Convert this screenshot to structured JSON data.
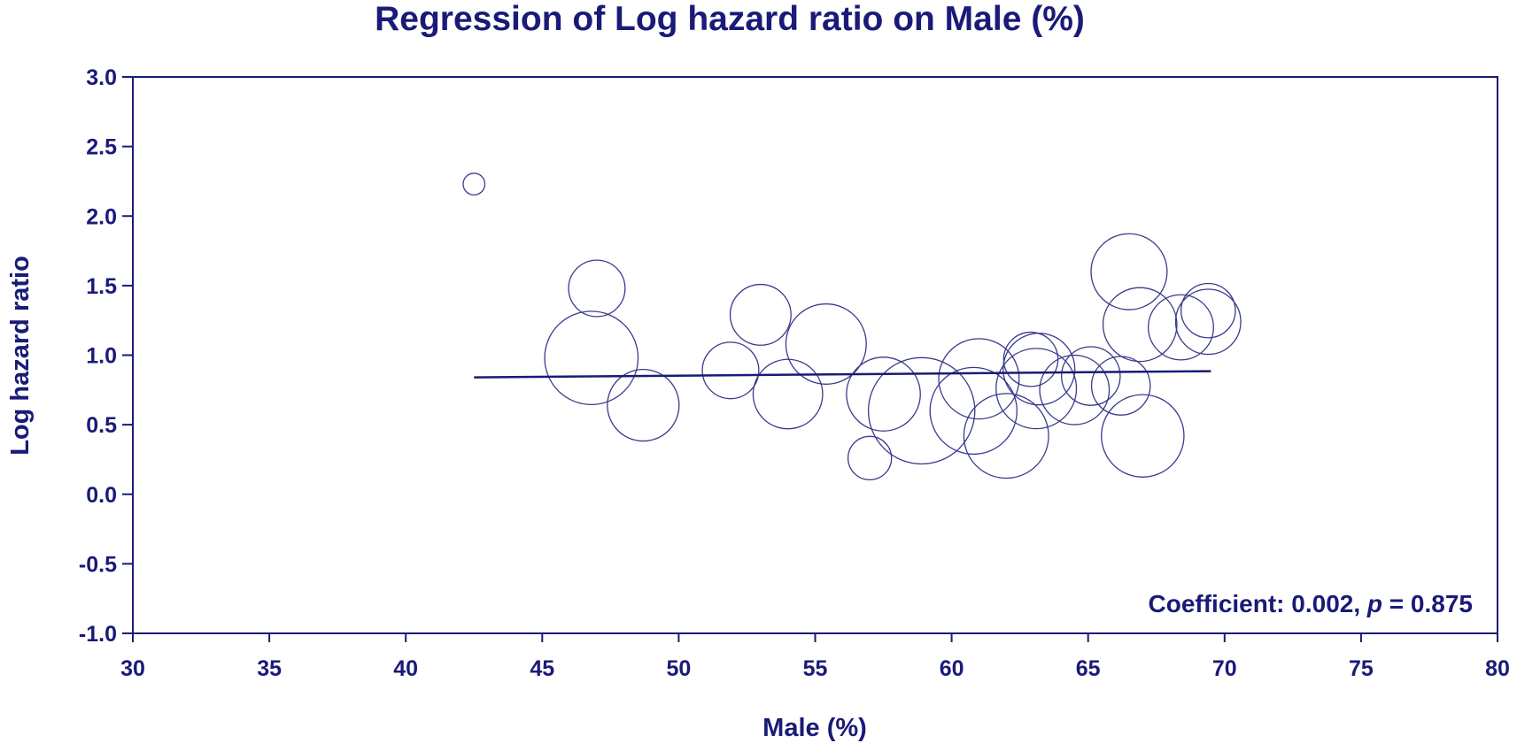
{
  "chart_data": {
    "type": "scatter",
    "title": "Regression of Log hazard ratio on Male (%)",
    "xlabel": "Male (%)",
    "ylabel": "Log hazard ratio",
    "xlim": [
      30,
      80
    ],
    "ylim": [
      -1.0,
      3.0
    ],
    "x_ticks": [
      "30",
      "35",
      "40",
      "45",
      "50",
      "55",
      "60",
      "65",
      "70",
      "75",
      "80"
    ],
    "y_ticks": [
      "3.0",
      "2.5",
      "2.0",
      "1.5",
      "1.0",
      "0.5",
      "0.0",
      "-0.5",
      "-1.0"
    ],
    "grid": false,
    "series": [
      {
        "name": "Studies",
        "points": [
          {
            "x": 42.5,
            "y": 2.23,
            "weight": 1.0
          },
          {
            "x": 47.0,
            "y": 1.48,
            "weight": 2.6
          },
          {
            "x": 46.8,
            "y": 0.98,
            "weight": 4.3
          },
          {
            "x": 48.7,
            "y": 0.64,
            "weight": 3.3
          },
          {
            "x": 51.9,
            "y": 0.89,
            "weight": 2.6
          },
          {
            "x": 53.0,
            "y": 1.29,
            "weight": 2.8
          },
          {
            "x": 54.0,
            "y": 0.72,
            "weight": 3.2
          },
          {
            "x": 55.4,
            "y": 1.08,
            "weight": 3.7
          },
          {
            "x": 57.5,
            "y": 0.72,
            "weight": 3.4
          },
          {
            "x": 57.0,
            "y": 0.26,
            "weight": 2.0
          },
          {
            "x": 58.9,
            "y": 0.6,
            "weight": 4.9
          },
          {
            "x": 61.0,
            "y": 0.83,
            "weight": 3.7
          },
          {
            "x": 60.8,
            "y": 0.6,
            "weight": 4.0
          },
          {
            "x": 62.0,
            "y": 0.42,
            "weight": 3.9
          },
          {
            "x": 62.9,
            "y": 0.97,
            "weight": 2.5
          },
          {
            "x": 63.1,
            "y": 0.76,
            "weight": 3.7
          },
          {
            "x": 63.2,
            "y": 0.9,
            "weight": 3.3
          },
          {
            "x": 64.5,
            "y": 0.75,
            "weight": 3.2
          },
          {
            "x": 65.1,
            "y": 0.85,
            "weight": 2.7
          },
          {
            "x": 66.5,
            "y": 1.6,
            "weight": 3.5
          },
          {
            "x": 66.2,
            "y": 0.78,
            "weight": 2.7
          },
          {
            "x": 67.0,
            "y": 0.42,
            "weight": 3.8
          },
          {
            "x": 66.9,
            "y": 1.22,
            "weight": 3.4
          },
          {
            "x": 68.4,
            "y": 1.2,
            "weight": 3.0
          },
          {
            "x": 69.4,
            "y": 1.32,
            "weight": 2.5
          },
          {
            "x": 69.4,
            "y": 1.24,
            "weight": 3.0
          }
        ]
      }
    ],
    "regression_line": {
      "x": [
        42.5,
        69.5
      ],
      "y": [
        0.84,
        0.885
      ]
    },
    "annotation": {
      "prefix": "Coefficient: 0.002, ",
      "p_symbol": "p",
      "suffix": " = 0.875",
      "position": "bottom-right"
    },
    "colors": {
      "text": "#1a1a78",
      "axis": "#1a1a78",
      "markers": "#3a3a8c",
      "line": "#1a1a78"
    }
  }
}
